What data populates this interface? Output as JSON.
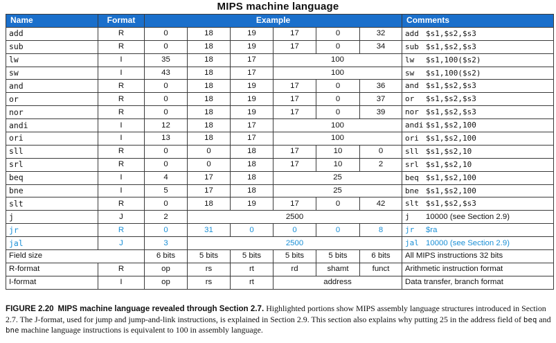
{
  "title": "MIPS machine language",
  "headers": {
    "name": "Name",
    "format": "Format",
    "example": "Example",
    "comments": "Comments"
  },
  "instructions": [
    {
      "name": "add",
      "format": "R",
      "fields": [
        "0",
        "18",
        "19",
        "17",
        "0",
        "32"
      ],
      "c_op": "add",
      "c_args": "$s1,$s2,$s3"
    },
    {
      "name": "sub",
      "format": "R",
      "fields": [
        "0",
        "18",
        "19",
        "17",
        "0",
        "34"
      ],
      "c_op": "sub",
      "c_args": "$s1,$s2,$s3"
    },
    {
      "name": "lw",
      "format": "I",
      "fields": [
        "35",
        "18",
        "17",
        "100"
      ],
      "c_op": "lw",
      "c_args": "$s1,100($s2)"
    },
    {
      "name": "sw",
      "format": "I",
      "fields": [
        "43",
        "18",
        "17",
        "100"
      ],
      "c_op": "sw",
      "c_args": "$s1,100($s2)"
    },
    {
      "name": "and",
      "format": "R",
      "fields": [
        "0",
        "18",
        "19",
        "17",
        "0",
        "36"
      ],
      "c_op": "and",
      "c_args": "$s1,$s2,$s3"
    },
    {
      "name": "or",
      "format": "R",
      "fields": [
        "0",
        "18",
        "19",
        "17",
        "0",
        "37"
      ],
      "c_op": "or",
      "c_args": "$s1,$s2,$s3"
    },
    {
      "name": "nor",
      "format": "R",
      "fields": [
        "0",
        "18",
        "19",
        "17",
        "0",
        "39"
      ],
      "c_op": "nor",
      "c_args": "$s1,$s2,$s3"
    },
    {
      "name": "andi",
      "format": "I",
      "fields": [
        "12",
        "18",
        "17",
        "100"
      ],
      "c_op": "andi",
      "c_args": "$s1,$s2,100"
    },
    {
      "name": "ori",
      "format": "I",
      "fields": [
        "13",
        "18",
        "17",
        "100"
      ],
      "c_op": "ori",
      "c_args": "$s1,$s2,100"
    },
    {
      "name": "sll",
      "format": "R",
      "fields": [
        "0",
        "0",
        "18",
        "17",
        "10",
        "0"
      ],
      "c_op": "sll",
      "c_args": "$s1,$s2,10"
    },
    {
      "name": "srl",
      "format": "R",
      "fields": [
        "0",
        "0",
        "18",
        "17",
        "10",
        "2"
      ],
      "c_op": "srl",
      "c_args": "$s1,$s2,10"
    },
    {
      "name": "beq",
      "format": "I",
      "fields": [
        "4",
        "17",
        "18",
        "25"
      ],
      "c_op": "beq",
      "c_args": "$s1,$s2,100"
    },
    {
      "name": "bne",
      "format": "I",
      "fields": [
        "5",
        "17",
        "18",
        "25"
      ],
      "c_op": "bne",
      "c_args": "$s1,$s2,100"
    },
    {
      "name": "slt",
      "format": "R",
      "fields": [
        "0",
        "18",
        "19",
        "17",
        "0",
        "42"
      ],
      "c_op": "slt",
      "c_args": "$s1,$s2,$s3"
    },
    {
      "name": "j",
      "format": "J",
      "fields": [
        "2",
        "2500"
      ],
      "c_op": "j",
      "c_args": "10000 (see Section 2.9)"
    },
    {
      "name": "jr",
      "format": "R",
      "fields": [
        "0",
        "31",
        "0",
        "0",
        "0",
        "8"
      ],
      "c_op": "jr",
      "c_args": "$ra",
      "highlight": true
    },
    {
      "name": "jal",
      "format": "J",
      "fields": [
        "3",
        "2500"
      ],
      "c_op": "jal",
      "c_args": "10000 (see Section 2.9)",
      "highlight": true
    }
  ],
  "field_size": {
    "label": "Field size",
    "sizes": [
      "6 bits",
      "5 bits",
      "5 bits",
      "5 bits",
      "5 bits",
      "6 bits"
    ],
    "comment": "All MIPS instructions 32 bits"
  },
  "r_format": {
    "label": "R-format",
    "format": "R",
    "fields": [
      "op",
      "rs",
      "rt",
      "rd",
      "shamt",
      "funct"
    ],
    "comment": "Arithmetic instruction format"
  },
  "i_format": {
    "label": "I-format",
    "format": "I",
    "fields": [
      "op",
      "rs",
      "rt",
      "address"
    ],
    "comment": "Data transfer, branch format"
  },
  "caption": {
    "figure": "FIGURE 2.20",
    "bold": "MIPS machine language revealed through Section 2.7.",
    "text1": "Highlighted portions show MIPS assembly language structures introduced in Section 2.7. The J-format, used for jump and jump-and-link instructions, is explained in Section 2.9. This section also explains why putting 25 in the address field of",
    "code1": "beq",
    "and": "and",
    "code2": "bne",
    "text2": "machine language instructions is equivalent to 100 in assembly language."
  },
  "colors": {
    "header_bg": "#1a6fcb",
    "highlight": "#1a8fd6"
  }
}
